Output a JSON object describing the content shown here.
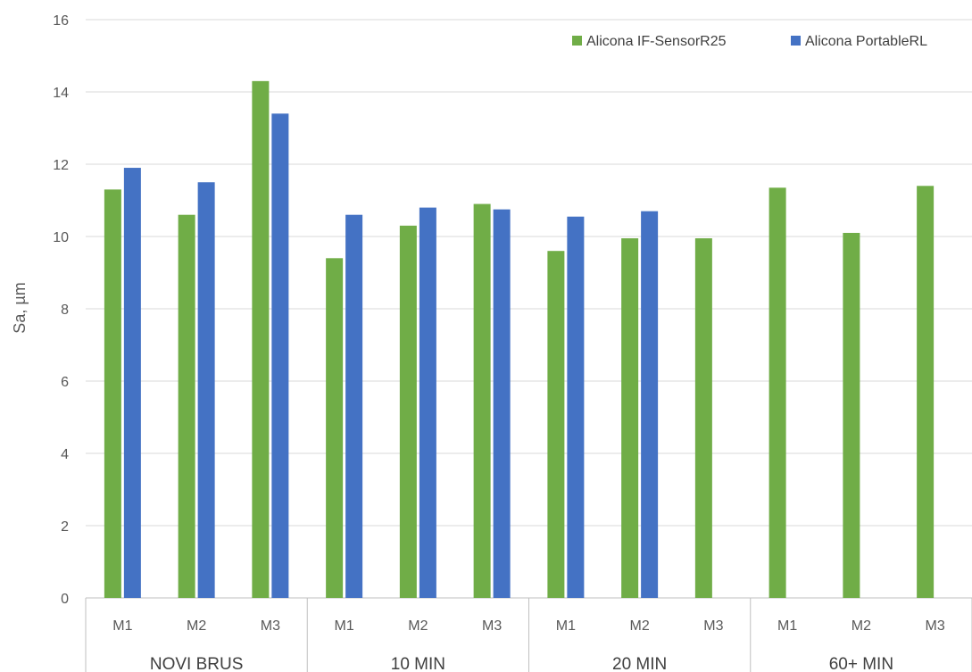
{
  "chart_data": {
    "type": "bar",
    "title": "",
    "xlabel": "",
    "ylabel": "Sa, µm",
    "ylim": [
      0,
      16
    ],
    "yticks": [
      0,
      2,
      4,
      6,
      8,
      10,
      12,
      14,
      16
    ],
    "grid": true,
    "legend_position": "top-right",
    "categories": [
      "M1",
      "M2",
      "M3",
      "M1",
      "M2",
      "M3",
      "M1",
      "M2",
      "M3",
      "M1",
      "M2",
      "M3"
    ],
    "groups": [
      {
        "label": "NOVI BRUS",
        "span": 3
      },
      {
        "label": "10 MIN",
        "span": 3
      },
      {
        "label": "20 MIN",
        "span": 3
      },
      {
        "label": "60+ MIN",
        "span": 3
      }
    ],
    "series": [
      {
        "name": "Alicona IF-SensorR25",
        "color": "#70ad47",
        "values": [
          11.3,
          10.6,
          14.3,
          9.4,
          10.3,
          10.9,
          9.6,
          9.95,
          9.95,
          11.35,
          10.1,
          11.4
        ]
      },
      {
        "name": "Alicona PortableRL",
        "color": "#4472c4",
        "values": [
          11.9,
          11.5,
          13.4,
          10.6,
          10.8,
          10.75,
          10.55,
          10.7,
          null,
          null,
          null,
          null
        ]
      }
    ]
  }
}
